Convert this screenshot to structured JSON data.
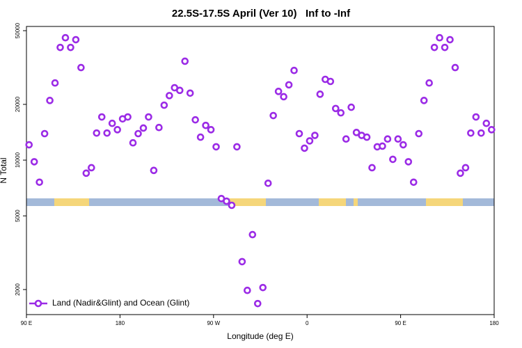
{
  "chart_data": {
    "type": "scatter",
    "title": "22.5S-17.5S April (Ver 10)   Inf to -Inf",
    "xlabel": "Longitude (deg E)",
    "ylabel": "N Total",
    "xlim": [
      90,
      540
    ],
    "xticks": [
      {
        "value": 90,
        "label": "90 E"
      },
      180,
      {
        "value": 270,
        "label": "90 W"
      },
      {
        "value": 360,
        "label": "0"
      },
      {
        "value": 450,
        "label": "90 E"
      },
      {
        "value": 540,
        "label": "180"
      }
    ],
    "ylim": [
      1465,
      52700
    ],
    "yscale": "log",
    "yticks": [
      2000,
      5000,
      10000,
      20000,
      50000
    ],
    "legend": "bottom-left",
    "series": [
      {
        "name": "Land (Nadir&Glint) and Ocean (Glint)",
        "color": "#9b2be6",
        "x": [
          92.5,
          97.5,
          102.5,
          107.5,
          112.5,
          117.5,
          122.5,
          127.5,
          132.5,
          137.5,
          142.5,
          147.5,
          152.5,
          157.5,
          162.5,
          167.5,
          172.5,
          177.5,
          182.5,
          187.5,
          192.5,
          197.5,
          202.5,
          207.5,
          212.5,
          217.5,
          222.5,
          227.5,
          232.5,
          237.5,
          242.5,
          247.5,
          252.5,
          257.5,
          262.5,
          267.5,
          272.5,
          277.5,
          282.5,
          287.5,
          292.5,
          297.5,
          302.5,
          307.5,
          312.5,
          317.5,
          322.5,
          327.5,
          332.5,
          337.5,
          342.5,
          347.5,
          352.5,
          357.5,
          362.5,
          367.5,
          372.5,
          377.5,
          382.5,
          387.5,
          392.5,
          397.5,
          402.5,
          407.5,
          412.5,
          417.5,
          422.5,
          427.5,
          432.5,
          437.5,
          442.5,
          447.5,
          452.5,
          457.5,
          462.5,
          467.5,
          472.5,
          477.5,
          482.5,
          487.5,
          492.5,
          497.5,
          502.5,
          507.5,
          512.5,
          517.5,
          522.5,
          527.5,
          532.5,
          537.5
        ],
        "values": [
          12100,
          9800,
          7600,
          13900,
          21000,
          26100,
          40600,
          45800,
          40600,
          44700,
          31600,
          8500,
          9100,
          14000,
          17100,
          14000,
          15800,
          14600,
          16700,
          17100,
          12400,
          13900,
          14900,
          17100,
          8800,
          15000,
          19800,
          22300,
          24600,
          23800,
          34200,
          23000,
          16500,
          13300,
          15400,
          14600,
          11800,
          6200,
          6000,
          5700,
          11800,
          2830,
          1980,
          3960,
          1680,
          2050,
          7500,
          17400,
          23500,
          22000,
          25500,
          30500,
          13900,
          11600,
          12700,
          13600,
          22700,
          27300,
          26600,
          19000,
          18000,
          13000,
          19300,
          14100,
          13600,
          13300,
          9100,
          11800,
          11900,
          13000,
          10100,
          13000,
          12100,
          9800,
          7600,
          13900,
          21000,
          26100,
          40600,
          45800,
          40600,
          44700,
          31600,
          8500,
          9100,
          14000,
          17100,
          14000,
          15800,
          14600
        ]
      }
    ]
  }
}
